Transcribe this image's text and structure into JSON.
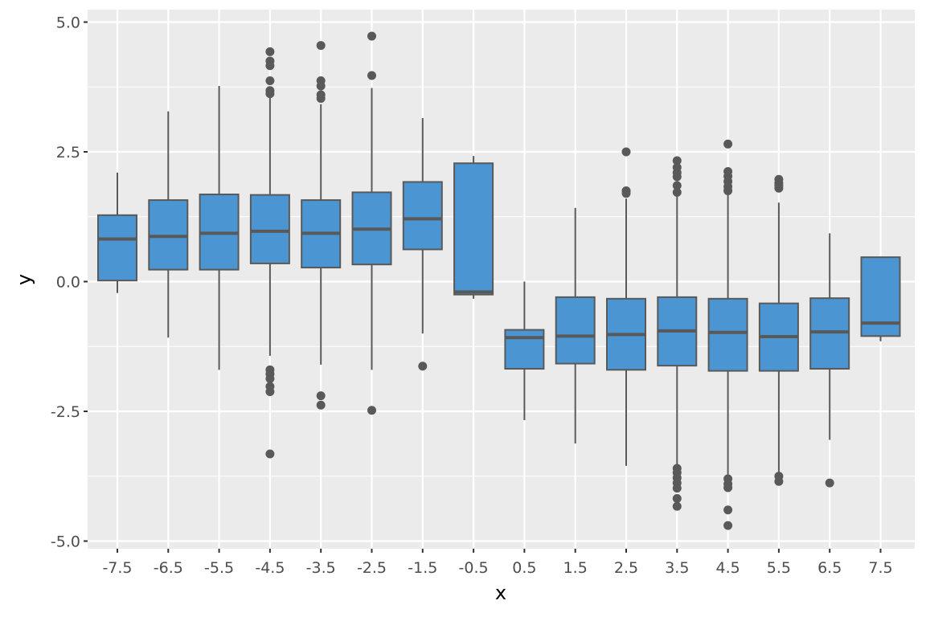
{
  "chart_data": {
    "type": "boxplot",
    "xlabel": "x",
    "ylabel": "y",
    "ylim": [
      -5.1,
      5.2
    ],
    "y_ticks": [
      5.0,
      2.5,
      0.0,
      -2.5,
      -5.0
    ],
    "y_tick_labels": [
      "5.0",
      "2.5",
      "0.0",
      "-2.5",
      "-5.0"
    ],
    "grid": true,
    "colors": {
      "panel": "#ebebeb",
      "grid": "#ffffff",
      "box_fill": "#4b96d2",
      "box_stroke": "#595959",
      "outlier": "#595959"
    },
    "categories": [
      "-7.5",
      "-6.5",
      "-5.5",
      "-4.5",
      "-3.5",
      "-2.5",
      "-1.5",
      "-0.5",
      "0.5",
      "1.5",
      "2.5",
      "3.5",
      "4.5",
      "5.5",
      "6.5",
      "7.5"
    ],
    "boxes": [
      {
        "x": -7.5,
        "min": -0.22,
        "q1": 0.02,
        "median": 0.82,
        "q3": 1.28,
        "max": 2.1,
        "outliers": []
      },
      {
        "x": -6.5,
        "min": -1.08,
        "q1": 0.23,
        "median": 0.87,
        "q3": 1.57,
        "max": 3.28,
        "outliers": []
      },
      {
        "x": -5.5,
        "min": -1.7,
        "q1": 0.23,
        "median": 0.93,
        "q3": 1.68,
        "max": 3.77,
        "outliers": []
      },
      {
        "x": -4.5,
        "min": -1.43,
        "q1": 0.35,
        "median": 0.97,
        "q3": 1.67,
        "max": 3.58,
        "outliers": [
          4.43,
          4.25,
          4.16,
          3.87,
          3.68,
          3.62,
          -1.7,
          -1.78,
          -1.87,
          -2.02,
          -2.12,
          -3.32
        ]
      },
      {
        "x": -3.5,
        "min": -1.6,
        "q1": 0.27,
        "median": 0.93,
        "q3": 1.57,
        "max": 3.42,
        "outliers": [
          4.55,
          3.87,
          3.77,
          3.6,
          3.53,
          -2.2,
          -2.38
        ]
      },
      {
        "x": -2.5,
        "min": -1.7,
        "q1": 0.33,
        "median": 1.01,
        "q3": 1.72,
        "max": 3.73,
        "outliers": [
          4.73,
          3.97,
          -2.48
        ]
      },
      {
        "x": -1.5,
        "min": -1.0,
        "q1": 0.62,
        "median": 1.21,
        "q3": 1.92,
        "max": 3.15,
        "outliers": [
          -1.63
        ]
      },
      {
        "x": -0.5,
        "min": -0.33,
        "q1": -0.25,
        "median": -0.2,
        "q3": 2.28,
        "max": 2.42,
        "outliers": []
      },
      {
        "x": 0.5,
        "min": -2.67,
        "q1": -1.68,
        "median": -1.08,
        "q3": -0.93,
        "max": 0.0,
        "outliers": []
      },
      {
        "x": 1.5,
        "min": -3.12,
        "q1": -1.58,
        "median": -1.05,
        "q3": -0.3,
        "max": 1.42,
        "outliers": []
      },
      {
        "x": 2.5,
        "min": -3.55,
        "q1": -1.7,
        "median": -1.02,
        "q3": -0.33,
        "max": 1.6,
        "outliers": [
          2.5,
          1.75,
          1.7
        ]
      },
      {
        "x": 3.5,
        "min": -3.6,
        "q1": -1.62,
        "median": -0.95,
        "q3": -0.3,
        "max": 1.65,
        "outliers": [
          2.33,
          2.2,
          2.1,
          2.02,
          1.85,
          1.72,
          -3.6,
          -3.68,
          -3.78,
          -3.88,
          -3.98,
          -4.18,
          -4.33
        ]
      },
      {
        "x": 4.5,
        "min": -3.73,
        "q1": -1.72,
        "median": -0.98,
        "q3": -0.33,
        "max": 1.7,
        "outliers": [
          2.65,
          2.12,
          2.03,
          1.93,
          1.83,
          1.75,
          -3.8,
          -3.9,
          -3.97,
          -4.4,
          -4.7
        ]
      },
      {
        "x": 5.5,
        "min": -3.7,
        "q1": -1.72,
        "median": -1.06,
        "q3": -0.42,
        "max": 1.52,
        "outliers": [
          1.97,
          1.9,
          1.85,
          1.8,
          -3.75,
          -3.85
        ]
      },
      {
        "x": 6.5,
        "min": -3.05,
        "q1": -1.68,
        "median": -0.97,
        "q3": -0.32,
        "max": 0.93,
        "outliers": [
          -3.88
        ]
      },
      {
        "x": 7.5,
        "min": -1.15,
        "q1": -1.05,
        "median": -0.8,
        "q3": 0.47,
        "max": 0.47,
        "outliers": []
      }
    ]
  }
}
